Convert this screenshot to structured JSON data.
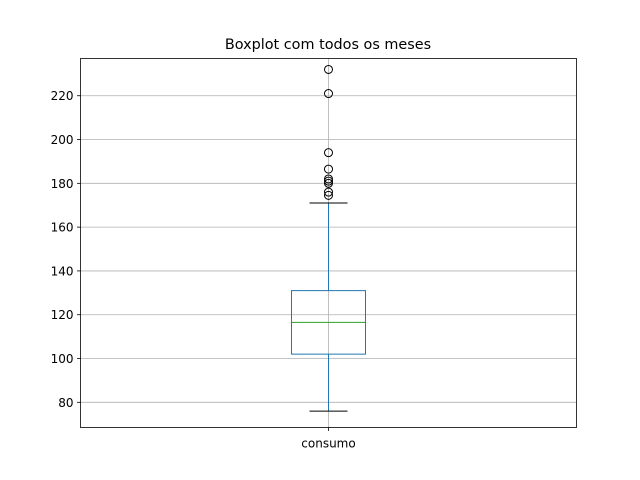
{
  "chart_data": {
    "type": "box",
    "title": "Boxplot com todos os meses",
    "categories": [
      "consumo"
    ],
    "ylim": [
      68.5,
      237
    ],
    "yticks": [
      80,
      100,
      120,
      140,
      160,
      180,
      200,
      220
    ],
    "grid": true,
    "series": [
      {
        "name": "consumo",
        "whisker_low": 76,
        "q1": 102,
        "median": 116.5,
        "q3": 131,
        "whisker_high": 171,
        "outliers": [
          174.5,
          176,
          180,
          181,
          182,
          186.5,
          194,
          221,
          232
        ]
      }
    ]
  },
  "colors": {
    "box": "#1f77b4",
    "median": "#2ca02c",
    "whisker_cap": "#000000",
    "grid": "#b0b0b0"
  }
}
